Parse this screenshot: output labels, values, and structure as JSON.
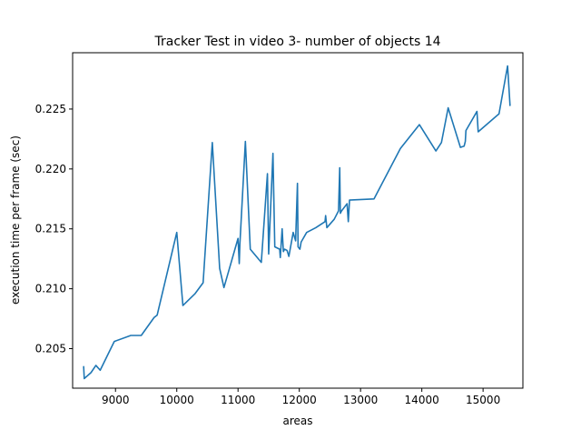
{
  "chart_data": {
    "type": "line",
    "title": "Tracker Test in video 3- number of objects 14",
    "xlabel": "areas",
    "ylabel": "execution time per frame (sec)",
    "xlim": [
      8300,
      15650
    ],
    "ylim": [
      0.2017,
      0.2297
    ],
    "xticks": [
      9000,
      10000,
      11000,
      12000,
      13000,
      14000,
      15000
    ],
    "yticks": [
      0.205,
      0.21,
      0.215,
      0.22,
      0.225
    ],
    "xtick_labels": [
      "9000",
      "10000",
      "11000",
      "12000",
      "13000",
      "14000",
      "15000"
    ],
    "ytick_labels": [
      "0.205",
      "0.210",
      "0.215",
      "0.220",
      "0.225"
    ],
    "grid": false,
    "series": [
      {
        "color": "#1f77b4",
        "x": [
          8480,
          8490,
          8600,
          8680,
          8750,
          8980,
          9250,
          9420,
          9630,
          9680,
          10000,
          10100,
          10300,
          10430,
          10580,
          10700,
          10770,
          11000,
          11020,
          11030,
          11120,
          11200,
          11380,
          11480,
          11500,
          11570,
          11600,
          11680,
          11690,
          11720,
          11740,
          11760,
          11800,
          11830,
          11900,
          11940,
          11970,
          11980,
          12010,
          12030,
          12120,
          12270,
          12420,
          12430,
          12450,
          12570,
          12640,
          12660,
          12670,
          12690,
          12780,
          12800,
          12820,
          13220,
          13650,
          13960,
          14230,
          14320,
          14430,
          14630,
          14690,
          14710,
          14720,
          14900,
          14920,
          15260,
          15400,
          15440
        ],
        "y": [
          0.2035,
          0.2025,
          0.203,
          0.2036,
          0.2032,
          0.2056,
          0.2061,
          0.2061,
          0.2076,
          0.2078,
          0.2147,
          0.2086,
          0.2096,
          0.2105,
          0.2222,
          0.2117,
          0.2101,
          0.2142,
          0.2121,
          0.2137,
          0.2223,
          0.2133,
          0.2122,
          0.2196,
          0.2129,
          0.2213,
          0.2135,
          0.2133,
          0.2126,
          0.215,
          0.2131,
          0.2133,
          0.2132,
          0.2127,
          0.2147,
          0.214,
          0.2188,
          0.2135,
          0.2133,
          0.2139,
          0.2147,
          0.2151,
          0.2156,
          0.2161,
          0.2151,
          0.2158,
          0.2165,
          0.2201,
          0.2163,
          0.2165,
          0.2171,
          0.2156,
          0.2174,
          0.2175,
          0.2217,
          0.2237,
          0.2215,
          0.2222,
          0.2251,
          0.2218,
          0.2219,
          0.2223,
          0.2232,
          0.2248,
          0.2231,
          0.2246,
          0.2286,
          0.2253
        ]
      }
    ]
  }
}
